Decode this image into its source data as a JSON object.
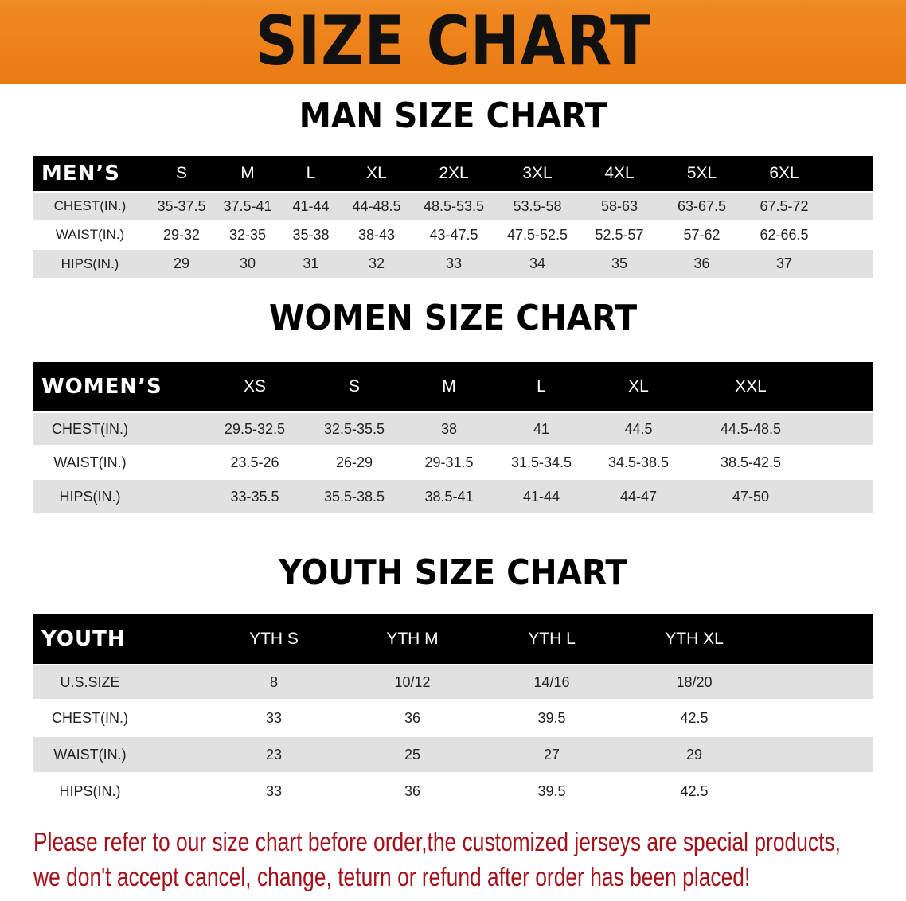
{
  "banner": {
    "title": "SIZE CHART",
    "color": "#ee8420"
  },
  "men": {
    "title": "MAN SIZE CHART",
    "header": "MEN’S",
    "sizes": [
      "S",
      "M",
      "L",
      "XL",
      "2XL",
      "3XL",
      "4XL",
      "5XL",
      "6XL"
    ],
    "rows": [
      {
        "label": "CHEST(IN.)",
        "values": [
          "35-37.5",
          "37.5-41",
          "41-44",
          "44-48.5",
          "48.5-53.5",
          "53.5-58",
          "58-63",
          "63-67.5",
          "67.5-72"
        ]
      },
      {
        "label": "WAIST(IN.)",
        "values": [
          "29-32",
          "32-35",
          "35-38",
          "38-43",
          "43-47.5",
          "47.5-52.5",
          "52.5-57",
          "57-62",
          "62-66.5"
        ]
      },
      {
        "label": "HIPS(IN.)",
        "values": [
          "29",
          "30",
          "31",
          "32",
          "33",
          "34",
          "35",
          "36",
          "37"
        ]
      }
    ]
  },
  "women": {
    "title": "WOMEN SIZE CHART",
    "header": "WOMEN’S",
    "sizes": [
      "XS",
      "S",
      "M",
      "L",
      "XL",
      "XXL"
    ],
    "rows": [
      {
        "label": "CHEST(IN.)",
        "values": [
          "29.5-32.5",
          "32.5-35.5",
          "38",
          "41",
          "44.5",
          "44.5-48.5"
        ]
      },
      {
        "label": "WAIST(IN.)",
        "values": [
          "23.5-26",
          "26-29",
          "29-31.5",
          "31.5-34.5",
          "34.5-38.5",
          "38.5-42.5"
        ]
      },
      {
        "label": "HIPS(IN.)",
        "values": [
          "33-35.5",
          "35.5-38.5",
          "38.5-41",
          "41-44",
          "44-47",
          "47-50"
        ]
      }
    ]
  },
  "youth": {
    "title": "YOUTH SIZE CHART",
    "header": "YOUTH",
    "sizes": [
      "YTH S",
      "YTH M",
      "YTH L",
      "YTH XL"
    ],
    "rows": [
      {
        "label": "U.S.SIZE",
        "values": [
          "8",
          "10/12",
          "14/16",
          "18/20"
        ]
      },
      {
        "label": "CHEST(IN.)",
        "values": [
          "33",
          "36",
          "39.5",
          "42.5"
        ]
      },
      {
        "label": "WAIST(IN.)",
        "values": [
          "23",
          "25",
          "27",
          "29"
        ]
      },
      {
        "label": "HIPS(IN.)",
        "values": [
          "33",
          "36",
          "39.5",
          "42.5"
        ]
      }
    ]
  },
  "note": {
    "line1": "Please refer to our size chart before order,the customized jerseys are special products,",
    "line2": "we don't accept cancel, change, teturn or refund after order has been placed!",
    "color": "#a3121c"
  }
}
